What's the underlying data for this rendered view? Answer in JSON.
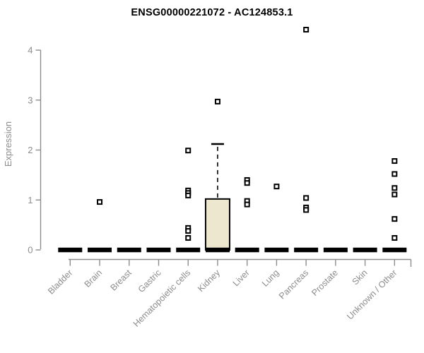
{
  "page": {
    "title": "ENSG00000221072 - AC124853.1"
  },
  "chart_data": {
    "type": "box",
    "title": "ENSG00000221072 - AC124853.1",
    "xlabel": "",
    "ylabel": "Expression",
    "ylim": [
      0,
      4
    ],
    "yticks": [
      0,
      1,
      2,
      3,
      4
    ],
    "grid": false,
    "legend": false,
    "categories": [
      "Bladder",
      "Brain",
      "Breast",
      "Gastric",
      "Hematopoietic cells",
      "Kidney",
      "Liver",
      "Lung",
      "Pancreas",
      "Prostate",
      "Skin",
      "Unknown / Other"
    ],
    "boxes": [
      {
        "category": "Bladder",
        "median": 0,
        "q1": 0,
        "q3": 0,
        "whisker_low": 0,
        "whisker_high": 0,
        "points": []
      },
      {
        "category": "Brain",
        "median": 0,
        "q1": 0,
        "q3": 0,
        "whisker_low": 0,
        "whisker_high": 0,
        "points": [
          0.96
        ]
      },
      {
        "category": "Breast",
        "median": 0,
        "q1": 0,
        "q3": 0,
        "whisker_low": 0,
        "whisker_high": 0,
        "points": []
      },
      {
        "category": "Gastric",
        "median": 0,
        "q1": 0,
        "q3": 0,
        "whisker_low": 0,
        "whisker_high": 0,
        "points": []
      },
      {
        "category": "Hematopoietic cells",
        "median": 0,
        "q1": 0,
        "q3": 0,
        "whisker_low": 0,
        "whisker_high": 0,
        "points": [
          1.99,
          1.19,
          1.14,
          1.09,
          0.44,
          0.38,
          0.24
        ]
      },
      {
        "category": "Kidney",
        "median": 0,
        "q1": 0,
        "q3": 1.02,
        "whisker_low": 0,
        "whisker_high": 2.12,
        "points": [
          2.97
        ]
      },
      {
        "category": "Liver",
        "median": 0,
        "q1": 0,
        "q3": 0,
        "whisker_low": 0,
        "whisker_high": 0,
        "points": [
          1.4,
          1.34,
          0.98,
          0.91
        ]
      },
      {
        "category": "Lung",
        "median": 0,
        "q1": 0,
        "q3": 0,
        "whisker_low": 0,
        "whisker_high": 0,
        "points": [
          1.27
        ]
      },
      {
        "category": "Pancreas",
        "median": 0,
        "q1": 0,
        "q3": 0,
        "whisker_low": 0,
        "whisker_high": 0,
        "points": [
          4.41,
          1.04,
          0.85,
          0.8
        ]
      },
      {
        "category": "Prostate",
        "median": 0,
        "q1": 0,
        "q3": 0,
        "whisker_low": 0,
        "whisker_high": 0,
        "points": []
      },
      {
        "category": "Skin",
        "median": 0,
        "q1": 0,
        "q3": 0,
        "whisker_low": 0,
        "whisker_high": 0,
        "points": []
      },
      {
        "category": "Unknown / Other",
        "median": 0,
        "q1": 0,
        "q3": 0,
        "whisker_low": 0,
        "whisker_high": 0,
        "points": [
          1.78,
          1.52,
          1.24,
          1.11,
          0.62,
          0.24
        ]
      }
    ],
    "colors": {
      "box_fill": "#ece7ce",
      "box_border": "#000000",
      "median": "#000000",
      "point": "#000000",
      "point_center": "#ffffff",
      "whisker": "#000000",
      "axis": "#8c8c8c",
      "tick_label": "#8c8c8c",
      "axis_label": "#8c8c8c",
      "title": "#000000",
      "background": "#ffffff"
    }
  }
}
